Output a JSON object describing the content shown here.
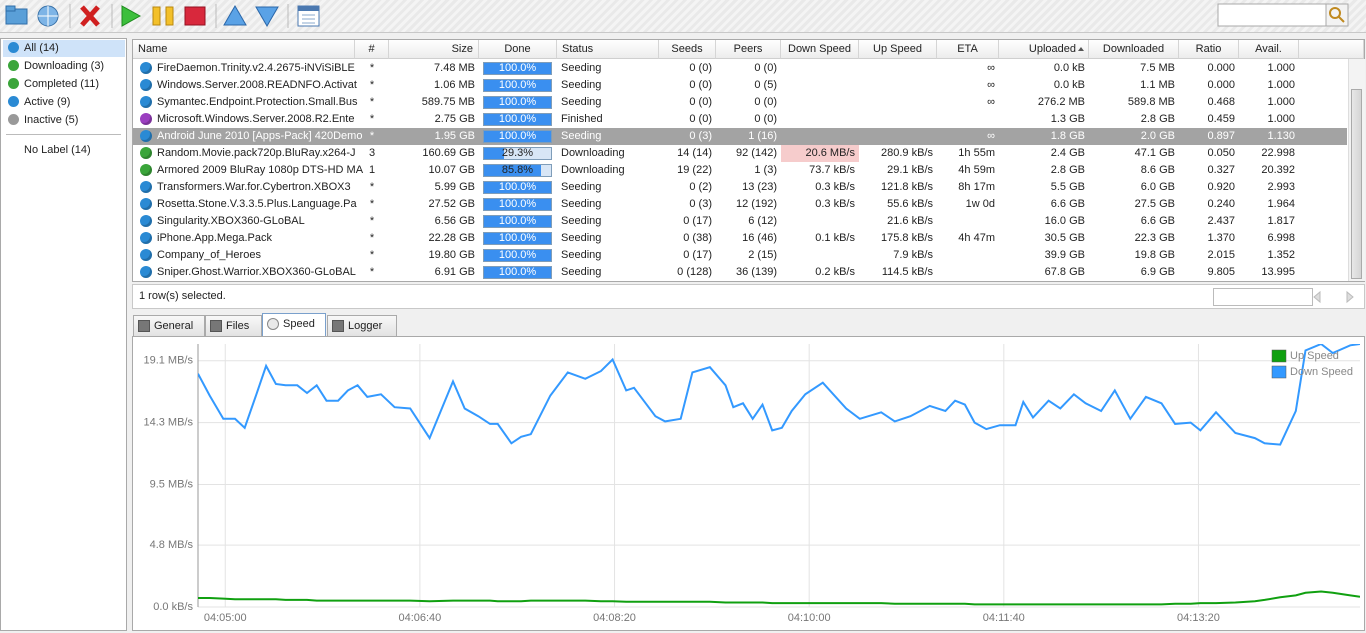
{
  "sidebar": {
    "items": [
      "All (14)",
      "Downloading (3)",
      "Completed (11)",
      "Active (9)",
      "Inactive (5)"
    ],
    "label": "No Label (14)"
  },
  "table": {
    "columns": [
      "Name",
      "#",
      "Size",
      "Done",
      "Status",
      "Seeds",
      "Peers",
      "Down Speed",
      "Up Speed",
      "ETA",
      "Uploaded",
      "Downloaded",
      "Ratio",
      "Avail."
    ],
    "rows": [
      {
        "icon_color": "#2a8ad4",
        "cells": [
          "FireDaemon.Trinity.v2.4.2675-iNViSiBLE",
          "*",
          "7.48 MB",
          "100.0%",
          "Seeding",
          "0 (0)",
          "0 (0)",
          null,
          null,
          "∞",
          "0.0 kB",
          "7.5 MB",
          "0.000",
          "1.000"
        ]
      },
      {
        "icon_color": "#2a8ad4",
        "cells": [
          "Windows.Server.2008.READNFO.Activat",
          "*",
          "1.06 MB",
          "100.0%",
          "Seeding",
          "0 (0)",
          "0 (5)",
          null,
          null,
          "∞",
          "0.0 kB",
          "1.1 MB",
          "0.000",
          "1.000"
        ]
      },
      {
        "icon_color": "#2a8ad4",
        "cells": [
          "Symantec.Endpoint.Protection.Small.Bus",
          "*",
          "589.75 MB",
          "100.0%",
          "Seeding",
          "0 (0)",
          "0 (0)",
          null,
          null,
          "∞",
          "276.2 MB",
          "589.8 MB",
          "0.468",
          "1.000"
        ]
      },
      {
        "icon_color": "#9b3fc0",
        "cells": [
          "Microsoft.Windows.Server.2008.R2.Ente",
          "*",
          "2.75 GB",
          "100.0%",
          "Finished",
          "0 (0)",
          "0 (0)",
          null,
          null,
          null,
          "1.3 GB",
          "2.8 GB",
          "0.459",
          "1.000"
        ]
      },
      {
        "icon_color": "#2a8ad4",
        "selected": true,
        "cells": [
          "Android June 2010 [Apps-Pack] 420Demo",
          "*",
          "1.95 GB",
          "100.0%",
          "Seeding",
          "0 (3)",
          "1 (16)",
          null,
          null,
          "∞",
          "1.8 GB",
          "2.0 GB",
          "0.897",
          "1.130"
        ]
      },
      {
        "icon_color": "#3aa53a",
        "highlight_color": "#f6cccc",
        "cells": [
          "Random.Movie.pack720p.BluRay.x264-J",
          "3",
          "160.69 GB",
          "29.3%",
          "Downloading",
          "14 (14)",
          "92 (142)",
          "20.6 MB/s",
          "280.9 kB/s",
          "1h 55m",
          "2.4 GB",
          "47.1 GB",
          "0.050",
          "22.998"
        ]
      },
      {
        "icon_color": "#3aa53a",
        "cells": [
          "Armored 2009 BluRay 1080p DTS-HD MA",
          "1",
          "10.07 GB",
          "85.8%",
          "Downloading",
          "19 (22)",
          "1 (3)",
          "73.7 kB/s",
          "29.1 kB/s",
          "4h 59m",
          "2.8 GB",
          "8.6 GB",
          "0.327",
          "20.392"
        ]
      },
      {
        "icon_color": "#2a8ad4",
        "cells": [
          "Transformers.War.for.Cybertron.XBOX3",
          "*",
          "5.99 GB",
          "100.0%",
          "Seeding",
          "0 (2)",
          "13 (23)",
          "0.3 kB/s",
          "121.8 kB/s",
          "8h 17m",
          "5.5 GB",
          "6.0 GB",
          "0.920",
          "2.993"
        ]
      },
      {
        "icon_color": "#2a8ad4",
        "cells": [
          "Rosetta.Stone.V.3.3.5.Plus.Language.Pa",
          "*",
          "27.52 GB",
          "100.0%",
          "Seeding",
          "0 (3)",
          "12 (192)",
          "0.3 kB/s",
          "55.6 kB/s",
          "1w 0d",
          "6.6 GB",
          "27.5 GB",
          "0.240",
          "1.964"
        ]
      },
      {
        "icon_color": "#2a8ad4",
        "cells": [
          "Singularity.XBOX360-GLoBAL",
          "*",
          "6.56 GB",
          "100.0%",
          "Seeding",
          "0 (17)",
          "6 (12)",
          null,
          "21.6 kB/s",
          null,
          "16.0 GB",
          "6.6 GB",
          "2.437",
          "1.817"
        ]
      },
      {
        "icon_color": "#2a8ad4",
        "cells": [
          "iPhone.App.Mega.Pack",
          "*",
          "22.28 GB",
          "100.0%",
          "Seeding",
          "0 (38)",
          "16 (46)",
          "0.1 kB/s",
          "175.8 kB/s",
          "4h 47m",
          "30.5 GB",
          "22.3 GB",
          "1.370",
          "6.998"
        ]
      },
      {
        "icon_color": "#2a8ad4",
        "cells": [
          "Company_of_Heroes",
          "*",
          "19.80 GB",
          "100.0%",
          "Seeding",
          "0 (17)",
          "2 (15)",
          null,
          "7.9 kB/s",
          null,
          "39.9 GB",
          "19.8 GB",
          "2.015",
          "1.352"
        ]
      },
      {
        "icon_color": "#2a8ad4",
        "cells": [
          "Sniper.Ghost.Warrior.XBOX360-GLoBAL",
          "*",
          "6.91 GB",
          "100.0%",
          "Seeding",
          "0 (128)",
          "36 (139)",
          "0.2 kB/s",
          "114.5 kB/s",
          null,
          "67.8 GB",
          "6.9 GB",
          "9.805",
          "13.995"
        ]
      }
    ]
  },
  "status_text": "1 row(s) selected.",
  "tabs": [
    "General",
    "Files",
    "Speed",
    "Logger"
  ],
  "chart_data": {
    "type": "line",
    "x": [
      286,
      292,
      299,
      305,
      310,
      316,
      321,
      326,
      331,
      337,
      342,
      347,
      352,
      358,
      363,
      368,
      373,
      380,
      387,
      395,
      405,
      417,
      423,
      430,
      436,
      440,
      447,
      452,
      457,
      467,
      476,
      485,
      493,
      499,
      506,
      510,
      516,
      521,
      526,
      534,
      540,
      549,
      557,
      561,
      566,
      571,
      576,
      581,
      586,
      591,
      598,
      607,
      619,
      626,
      637,
      644,
      652,
      662,
      670,
      675,
      680,
      685,
      691,
      698,
      706,
      710,
      715,
      723,
      729,
      736,
      742,
      750,
      757,
      765,
      773,
      781,
      788,
      796,
      801,
      809,
      819,
      829,
      834,
      842,
      850,
      855,
      863,
      869,
      878,
      883
    ],
    "series": [
      {
        "name": "Up Speed",
        "color": "#10a010",
        "values": [
          0.7,
          0.7,
          0.65,
          0.6,
          0.6,
          0.6,
          0.6,
          0.6,
          0.55,
          0.55,
          0.55,
          0.5,
          0.5,
          0.5,
          0.5,
          0.5,
          0.5,
          0.5,
          0.5,
          0.5,
          0.45,
          0.5,
          0.5,
          0.5,
          0.5,
          0.45,
          0.45,
          0.45,
          0.5,
          0.5,
          0.5,
          0.5,
          0.45,
          0.45,
          0.4,
          0.4,
          0.4,
          0.4,
          0.4,
          0.4,
          0.4,
          0.4,
          0.35,
          0.35,
          0.35,
          0.35,
          0.35,
          0.3,
          0.3,
          0.3,
          0.3,
          0.3,
          0.3,
          0.3,
          0.3,
          0.25,
          0.25,
          0.25,
          0.25,
          0.25,
          0.25,
          0.2,
          0.2,
          0.2,
          0.2,
          0.2,
          0.2,
          0.2,
          0.2,
          0.2,
          0.2,
          0.2,
          0.2,
          0.2,
          0.2,
          0.2,
          0.25,
          0.25,
          0.3,
          0.3,
          0.35,
          0.45,
          0.55,
          0.75,
          0.9,
          1.1,
          1.2,
          1.1,
          0.9,
          0.8
        ]
      },
      {
        "name": "Down Speed",
        "color": "#3399ff",
        "values": [
          18.1,
          16.4,
          14.6,
          14.6,
          13.9,
          16.5,
          18.7,
          17.3,
          17.2,
          17.2,
          16.6,
          17.2,
          16.0,
          16.0,
          16.8,
          17.2,
          16.3,
          16.5,
          15.5,
          15.4,
          13.1,
          17.5,
          15.4,
          14.8,
          14.2,
          14.2,
          12.7,
          13.2,
          13.4,
          16.4,
          18.2,
          17.7,
          18.3,
          19.2,
          16.8,
          17.0,
          15.8,
          14.8,
          14.4,
          14.6,
          18.2,
          18.6,
          17.2,
          15.5,
          15.8,
          14.6,
          15.7,
          13.7,
          13.9,
          15.2,
          16.5,
          17.4,
          15.4,
          14.6,
          15.1,
          14.4,
          14.8,
          15.6,
          15.2,
          16.0,
          15.7,
          14.3,
          13.8,
          14.1,
          14.1,
          15.9,
          14.7,
          16.0,
          15.4,
          16.5,
          15.8,
          15.2,
          16.8,
          14.6,
          16.3,
          15.8,
          14.2,
          14.3,
          13.7,
          15.1,
          13.5,
          13.1,
          12.7,
          12.6,
          15.2,
          19.9,
          20.4,
          19.7,
          20.3,
          20.4
        ]
      }
    ],
    "xlim": [
      286,
      883
    ],
    "xticks": [
      {
        "value": 300,
        "label": "04:05:00"
      },
      {
        "value": 400,
        "label": "04:06:40"
      },
      {
        "value": 500,
        "label": "04:08:20"
      },
      {
        "value": 600,
        "label": "04:10:00"
      },
      {
        "value": 700,
        "label": "04:11:40"
      },
      {
        "value": 800,
        "label": "04:13:20"
      }
    ],
    "ylim": [
      0,
      20.4
    ],
    "yticks": [
      {
        "value": 0,
        "label": "0.0 kB/s"
      },
      {
        "value": 4.8,
        "label": "4.8 MB/s"
      },
      {
        "value": 9.5,
        "label": "9.5 MB/s"
      },
      {
        "value": 14.3,
        "label": "14.3 MB/s"
      },
      {
        "value": 19.1,
        "label": "19.1 MB/s"
      }
    ],
    "grid": true,
    "legend": "top-right"
  }
}
